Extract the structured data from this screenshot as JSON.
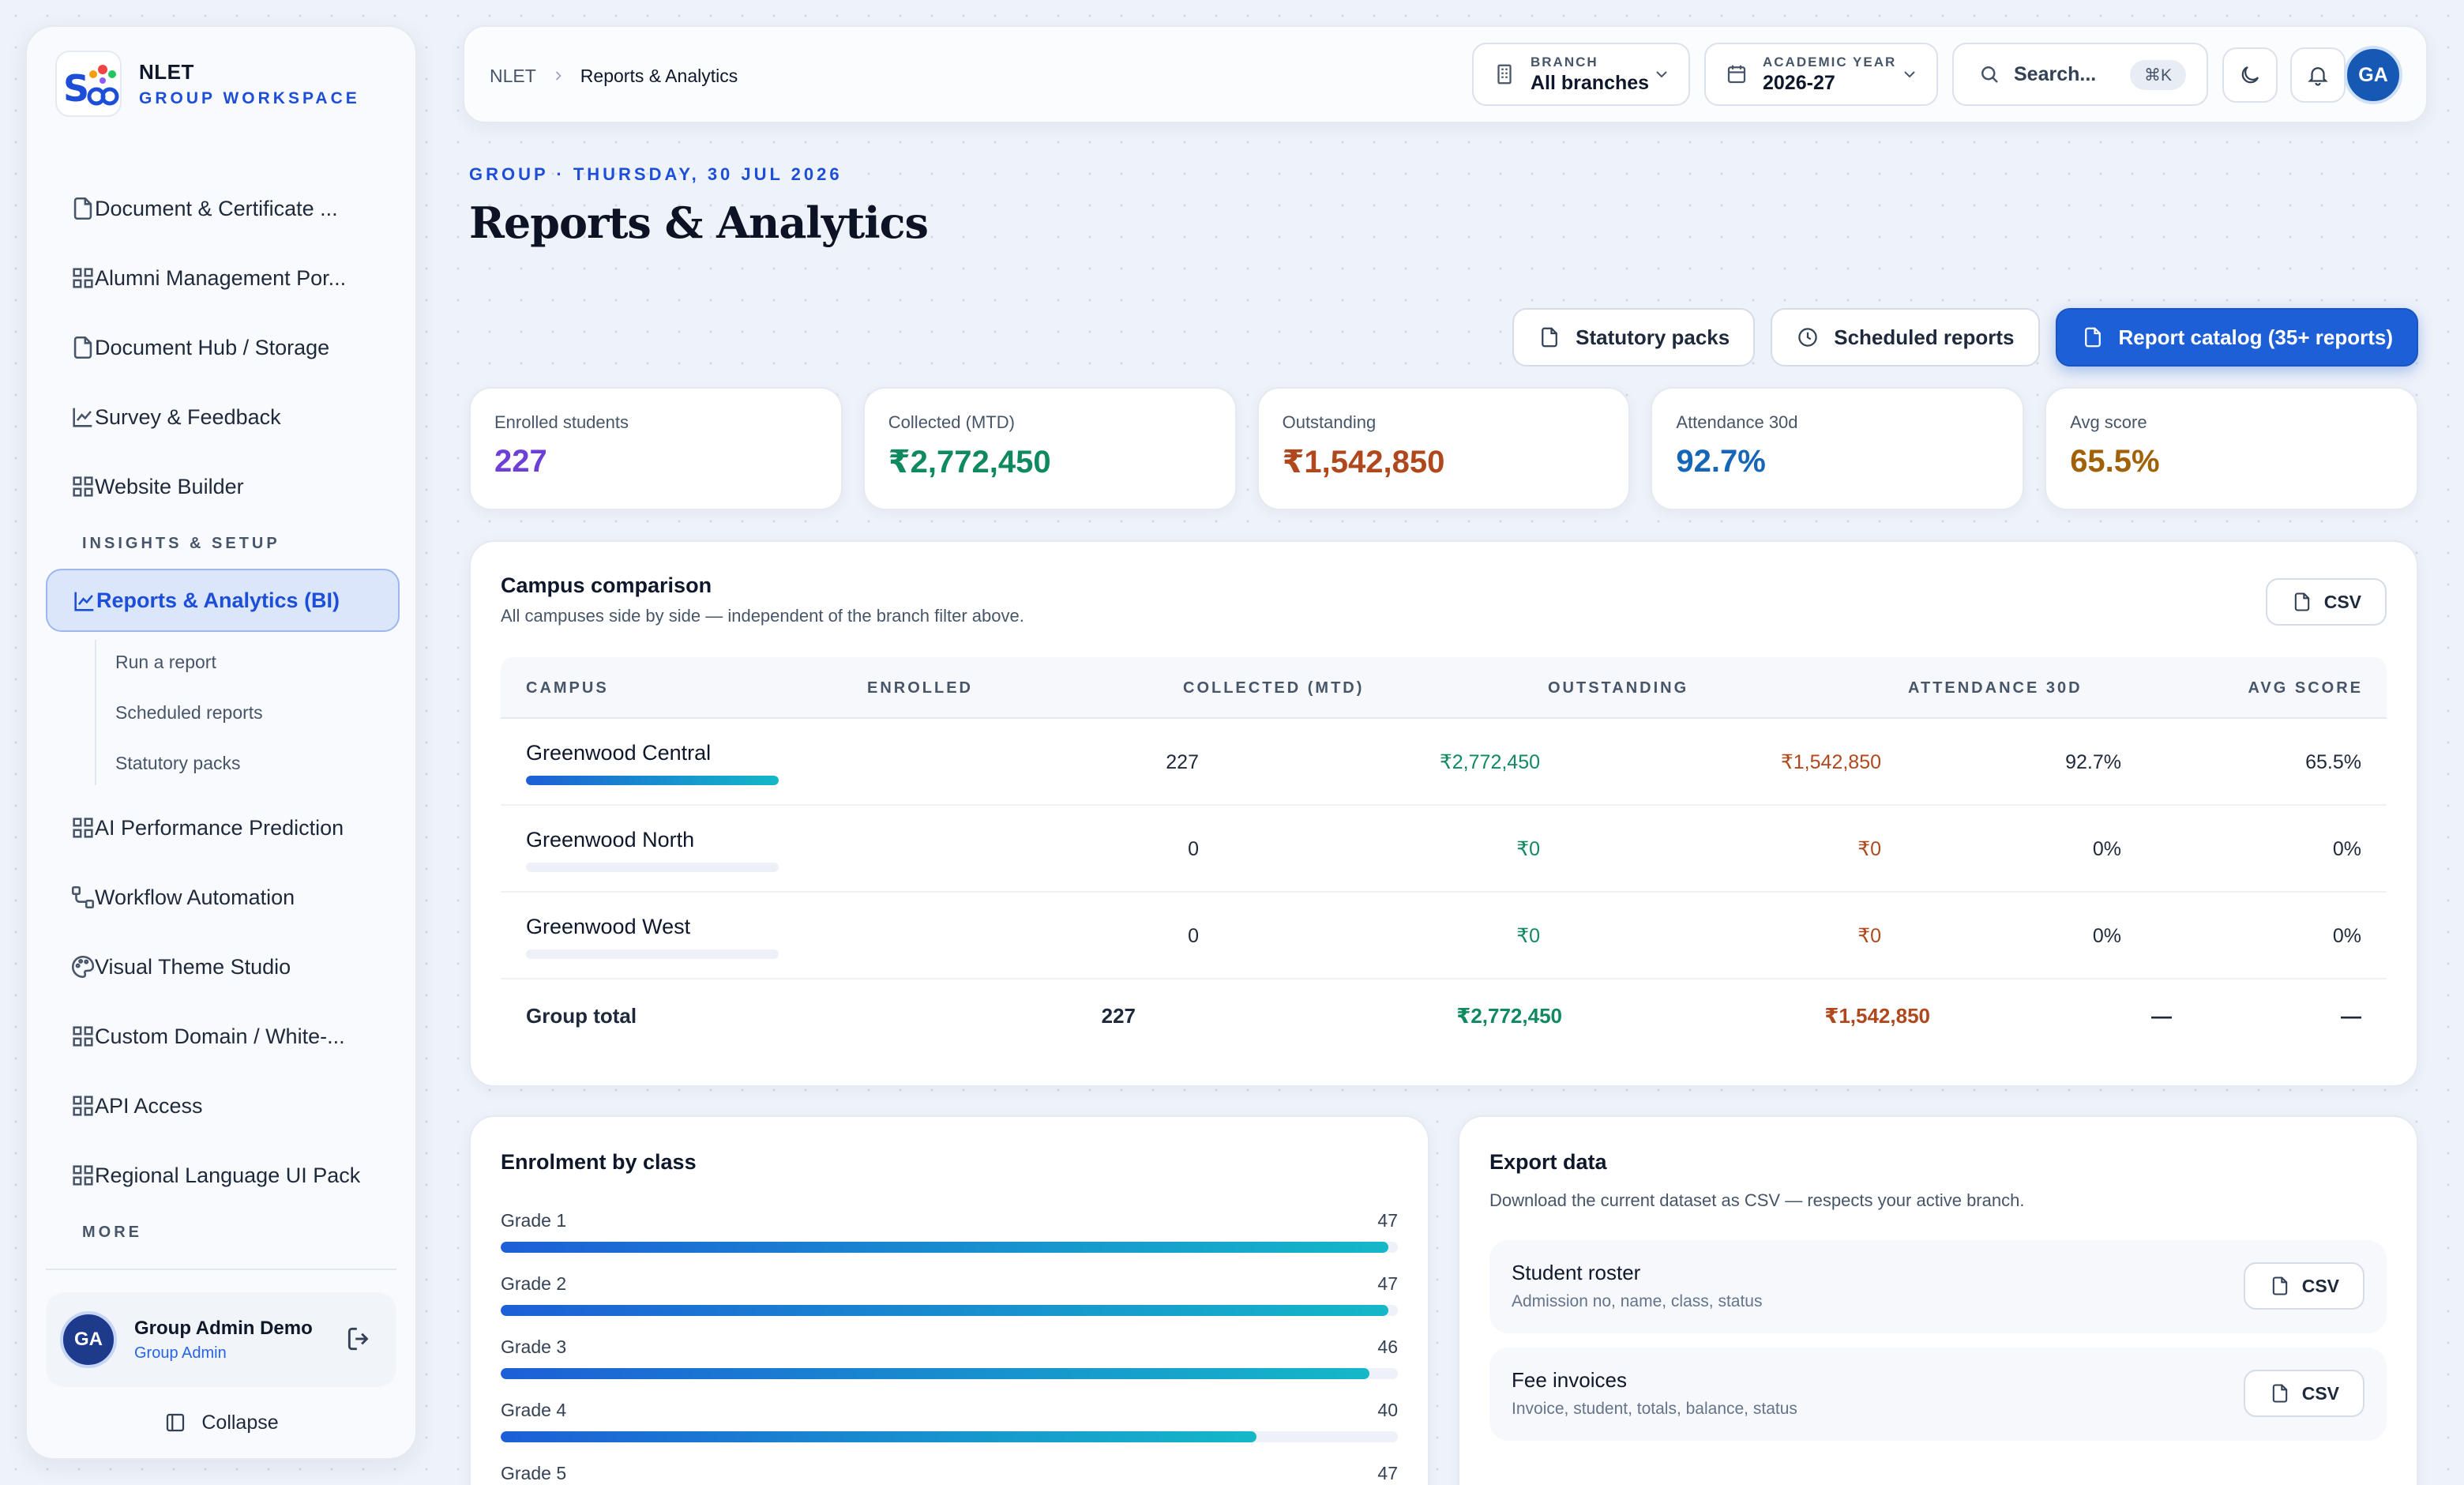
{
  "brand": {
    "name": "NLET",
    "subtitle": "GROUP WORKSPACE"
  },
  "sidebar": {
    "items_top": [
      {
        "label": "Document & Certificate ...",
        "icon": "document-icon"
      },
      {
        "label": "Alumni Management Por...",
        "icon": "grid-icon"
      },
      {
        "label": "Document Hub / Storage",
        "icon": "document-icon"
      },
      {
        "label": "Survey & Feedback",
        "icon": "chart-line-icon"
      },
      {
        "label": "Website Builder",
        "icon": "grid-icon"
      }
    ],
    "section_insights": "INSIGHTS & SETUP",
    "active": {
      "label": "Reports & Analytics (BI)",
      "icon": "chart-line-icon"
    },
    "sub_items": [
      "Run a report",
      "Scheduled reports",
      "Statutory packs"
    ],
    "items_bottom": [
      {
        "label": "AI Performance Prediction",
        "icon": "grid-icon"
      },
      {
        "label": "Workflow Automation",
        "icon": "workflow-icon"
      },
      {
        "label": "Visual Theme Studio",
        "icon": "palette-icon"
      },
      {
        "label": "Custom Domain / White-...",
        "icon": "grid-icon"
      },
      {
        "label": "API Access",
        "icon": "grid-icon"
      },
      {
        "label": "Regional Language UI Pack",
        "icon": "grid-icon"
      }
    ],
    "section_more": "MORE",
    "user": {
      "initials": "GA",
      "name": "Group Admin Demo",
      "role": "Group Admin"
    },
    "collapse_label": "Collapse"
  },
  "topbar": {
    "crumb_root": "NLET",
    "crumb_current": "Reports & Analytics",
    "branch_label": "BRANCH",
    "branch_value": "All branches",
    "year_label": "ACADEMIC YEAR",
    "year_value": "2026-27",
    "search_placeholder": "Search...",
    "search_shortcut": "⌘K",
    "avatar_initials": "GA"
  },
  "header": {
    "eyebrow": "GROUP · THURSDAY, 30 JUL 2026",
    "title": "Reports & Analytics"
  },
  "actions": {
    "statutory": "Statutory packs",
    "scheduled": "Scheduled reports",
    "catalog": "Report catalog (35+ reports)"
  },
  "kpis": [
    {
      "label": "Enrolled students",
      "value": "227",
      "color": "#6d3fd6"
    },
    {
      "label": "Collected (MTD)",
      "value": "₹2,772,450",
      "color": "#0f8a5f"
    },
    {
      "label": "Outstanding",
      "value": "₹1,542,850",
      "color": "#b0481d"
    },
    {
      "label": "Attendance 30d",
      "value": "92.7%",
      "color": "#1666b8"
    },
    {
      "label": "Avg score",
      "value": "65.5%",
      "color": "#a16207"
    }
  ],
  "campus": {
    "title": "Campus comparison",
    "subtitle": "All campuses side by side — independent of the branch filter above.",
    "csv_label": "CSV",
    "columns": [
      "CAMPUS",
      "ENROLLED",
      "COLLECTED (MTD)",
      "OUTSTANDING",
      "ATTENDANCE 30D",
      "AVG SCORE"
    ],
    "rows": [
      {
        "name": "Greenwood Central",
        "enrolled": "227",
        "collected": "₹2,772,450",
        "outstanding": "₹1,542,850",
        "attendance": "92.7%",
        "score": "65.5%",
        "share": 1.0
      },
      {
        "name": "Greenwood North",
        "enrolled": "0",
        "collected": "₹0",
        "outstanding": "₹0",
        "attendance": "0%",
        "score": "0%",
        "share": 0
      },
      {
        "name": "Greenwood West",
        "enrolled": "0",
        "collected": "₹0",
        "outstanding": "₹0",
        "attendance": "0%",
        "score": "0%",
        "share": 0
      }
    ],
    "total": {
      "label": "Group total",
      "enrolled": "227",
      "collected": "₹2,772,450",
      "outstanding": "₹1,542,850",
      "attendance": "—",
      "score": "—"
    }
  },
  "enrolment": {
    "title": "Enrolment by class",
    "max": 47.5,
    "classes": [
      {
        "label": "Grade 1",
        "value": 47
      },
      {
        "label": "Grade 2",
        "value": 47
      },
      {
        "label": "Grade 3",
        "value": 46
      },
      {
        "label": "Grade 4",
        "value": 40
      },
      {
        "label": "Grade 5",
        "value": 47
      }
    ]
  },
  "export": {
    "title": "Export data",
    "subtitle": "Download the current dataset as CSV — respects your active branch.",
    "items": [
      {
        "name": "Student roster",
        "desc": "Admission no, name, class, status",
        "csv": "CSV"
      },
      {
        "name": "Fee invoices",
        "desc": "Invoice, student, totals, balance, status",
        "csv": "CSV"
      }
    ]
  }
}
